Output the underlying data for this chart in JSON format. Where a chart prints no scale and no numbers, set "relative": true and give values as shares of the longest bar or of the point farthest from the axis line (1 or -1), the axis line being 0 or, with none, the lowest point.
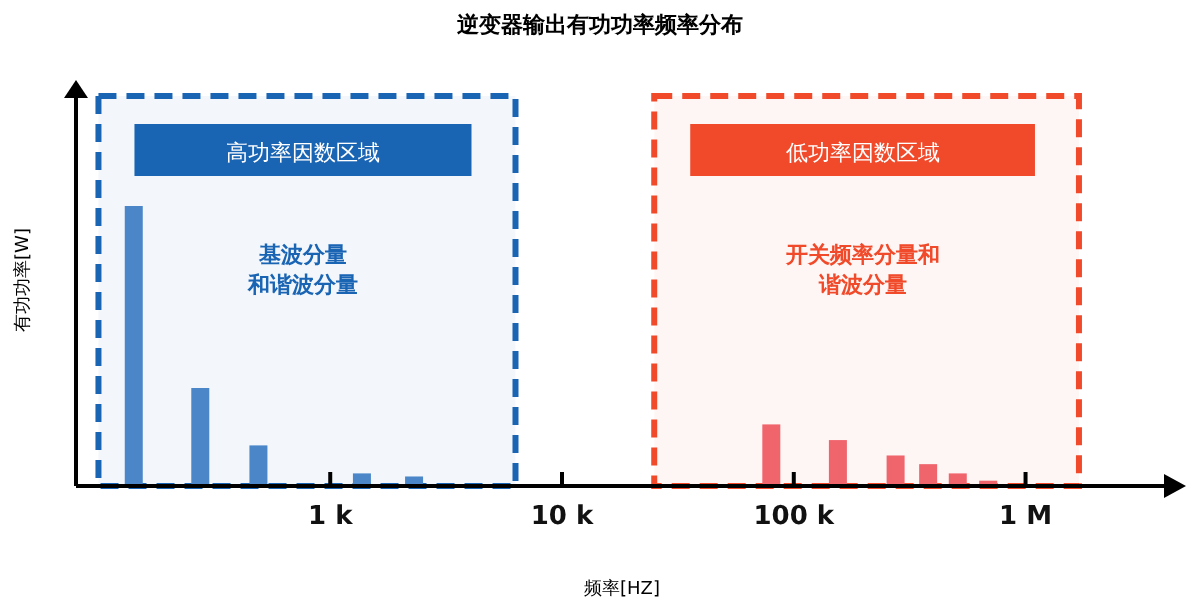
{
  "chart_data": {
    "type": "bar",
    "title": "逆变器输出有功功率频率分布",
    "xlabel": "频率[HZ]",
    "ylabel": "有功功率[W]",
    "relative": true,
    "log": "x",
    "xlim": [
      80,
      4200000
    ],
    "xticks": [
      {
        "value": 1000,
        "label": "1 k"
      },
      {
        "value": 10000,
        "label": "10 k"
      },
      {
        "value": 100000,
        "label": "100 k"
      },
      {
        "value": 1000000,
        "label": "1 M"
      }
    ],
    "series": [
      {
        "color": "#4a86c8",
        "x": [
          142,
          275,
          490,
          1370,
          2300
        ],
        "values": [
          1,
          0.35,
          0.145,
          0.045,
          0.034
        ]
      },
      {
        "color": "#f0646c",
        "x": [
          80000,
          155000,
          275000,
          380000,
          510000,
          690000
        ],
        "values": [
          0.22,
          0.164,
          0.109,
          0.078,
          0.045,
          0.019
        ]
      }
    ],
    "bands": [
      {
        "axis": "x",
        "from": 100,
        "to": 6300,
        "label": "高功率因数区域",
        "color": "#1a64b4"
      },
      {
        "axis": "x",
        "from": 25000,
        "to": 1700000,
        "label": "低功率因数区域",
        "color": "#f04a2a"
      }
    ],
    "annotations": [
      "基波分量",
      "和谐波分量",
      "开关频率分量和",
      "谐波分量"
    ]
  }
}
